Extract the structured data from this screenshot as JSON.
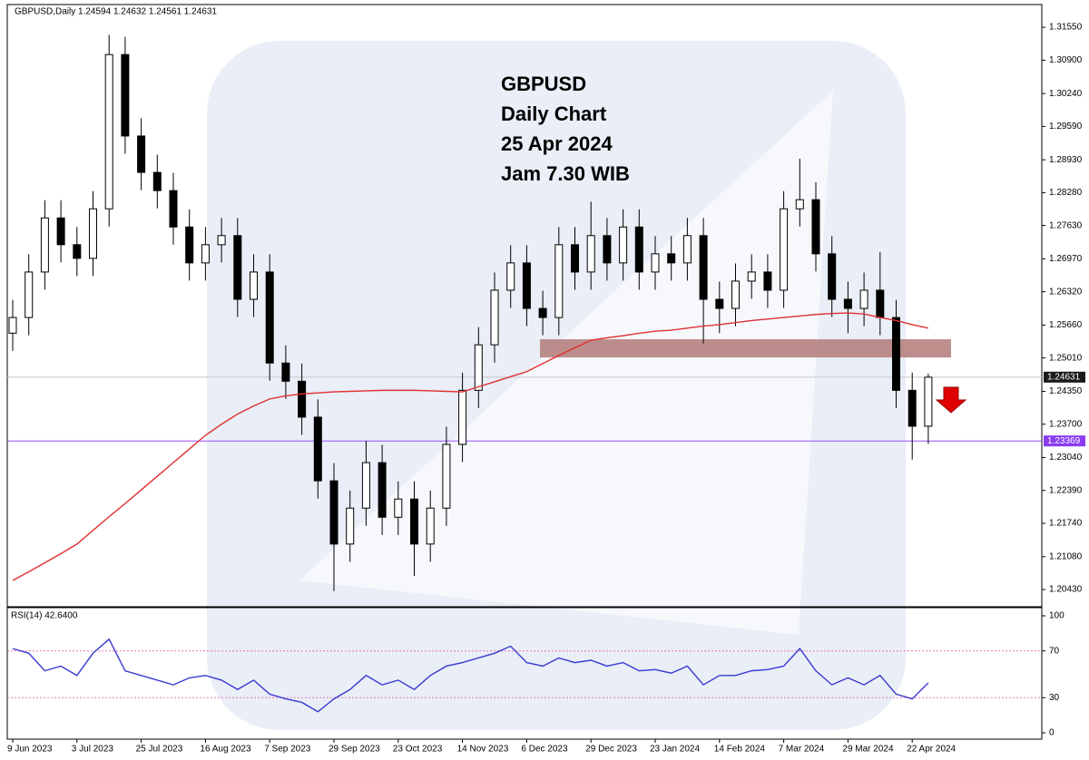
{
  "chart_data": [
    {
      "type": "candlestick",
      "header": "GBPUSD,Daily  1.24594 1.24632 1.24561 1.24631",
      "annotation": [
        "GBPUSD",
        "Daily Chart",
        "25 Apr 2024",
        "Jam 7.30 WIB"
      ],
      "categories": [
        "9 Jun 2023",
        null,
        null,
        null,
        "3 Jul 2023",
        null,
        null,
        null,
        "25 Jul 2023",
        null,
        null,
        null,
        "16 Aug 2023",
        null,
        null,
        null,
        "7 Sep 2023",
        null,
        null,
        null,
        "29 Sep 2023",
        null,
        null,
        null,
        "23 Oct 2023",
        null,
        null,
        null,
        "14 Nov 2023",
        null,
        null,
        null,
        "6 Dec 2023",
        null,
        null,
        null,
        "29 Dec 2023",
        null,
        null,
        null,
        "23 Jan 2024",
        null,
        null,
        null,
        "14 Feb 2024",
        null,
        null,
        null,
        "7 Mar 2024",
        null,
        null,
        null,
        "29 Mar 2024",
        null,
        null,
        null,
        "22 Apr 2024",
        null
      ],
      "open": [
        1.255,
        1.2581,
        1.2671,
        1.2778,
        1.2725,
        1.2698,
        1.2796,
        1.3101,
        1.294,
        1.2868,
        1.2832,
        1.276,
        1.2689,
        1.2725,
        1.2743,
        1.2617,
        1.2671,
        1.2491,
        1.2455,
        1.2384,
        1.2258,
        1.2133,
        1.2204,
        1.2294,
        1.2186,
        1.2222,
        1.2133,
        1.2204,
        1.233,
        1.2437,
        1.2527,
        1.2635,
        1.2689,
        1.2599,
        1.2581,
        1.2725,
        1.2671,
        1.2743,
        1.2689,
        1.276,
        1.2671,
        1.2707,
        1.2689,
        1.2743,
        1.2617,
        1.2599,
        1.2653,
        1.2671,
        1.2635,
        1.2796,
        1.2814,
        1.2707,
        1.2617,
        1.2599,
        1.2635,
        1.2581,
        1.2437,
        1.2366
      ],
      "high": [
        1.2616,
        1.2706,
        1.2813,
        1.2813,
        1.276,
        1.2831,
        1.314,
        1.3136,
        1.2975,
        1.2903,
        1.2867,
        1.2795,
        1.276,
        1.2778,
        1.2778,
        1.2706,
        1.2706,
        1.2526,
        1.249,
        1.2419,
        1.2293,
        1.2239,
        1.2337,
        1.2329,
        1.2257,
        1.2257,
        1.2239,
        1.2365,
        1.2472,
        1.2562,
        1.267,
        1.2724,
        1.2724,
        1.2634,
        1.276,
        1.276,
        1.281,
        1.2778,
        1.2795,
        1.2795,
        1.2742,
        1.2742,
        1.2778,
        1.2778,
        1.2652,
        1.2688,
        1.2706,
        1.2706,
        1.2831,
        1.2895,
        1.2849,
        1.2742,
        1.2652,
        1.267,
        1.271,
        1.2616,
        1.2472,
        1.247
      ],
      "low": [
        1.2515,
        1.2546,
        1.2636,
        1.269,
        1.2663,
        1.2663,
        1.2761,
        1.2905,
        1.2833,
        1.2797,
        1.2725,
        1.2654,
        1.2654,
        1.269,
        1.2582,
        1.2582,
        1.2456,
        1.242,
        1.2349,
        1.2223,
        1.204,
        1.2098,
        1.2169,
        1.2151,
        1.2151,
        1.207,
        1.2098,
        1.2169,
        1.2295,
        1.2402,
        1.2492,
        1.26,
        1.2564,
        1.2546,
        1.2546,
        1.2636,
        1.2636,
        1.2654,
        1.2654,
        1.2636,
        1.2636,
        1.2654,
        1.2654,
        1.253,
        1.255,
        1.2564,
        1.2618,
        1.26,
        1.26,
        1.2761,
        1.2672,
        1.2582,
        1.255,
        1.2564,
        1.2546,
        1.2402,
        1.23,
        1.2331
      ],
      "close": [
        1.2581,
        1.2671,
        1.2778,
        1.2725,
        1.2698,
        1.2796,
        1.3101,
        1.294,
        1.2868,
        1.2832,
        1.276,
        1.2689,
        1.2725,
        1.2743,
        1.2617,
        1.2671,
        1.2491,
        1.2455,
        1.2384,
        1.2258,
        1.2133,
        1.2204,
        1.2294,
        1.2186,
        1.2222,
        1.2133,
        1.2204,
        1.233,
        1.2437,
        1.2527,
        1.2635,
        1.2689,
        1.2599,
        1.2581,
        1.2725,
        1.2671,
        1.2743,
        1.2689,
        1.276,
        1.2671,
        1.2707,
        1.2689,
        1.2743,
        1.2617,
        1.2599,
        1.2653,
        1.2671,
        1.2635,
        1.2796,
        1.2814,
        1.2707,
        1.2617,
        1.2599,
        1.2635,
        1.2581,
        1.2437,
        1.2366,
        1.2463
      ],
      "up_color": "#ffffff",
      "down_color": "#000000",
      "ma": {
        "color": "#e03030",
        "values": [
          1.2061,
          1.2078,
          1.2096,
          1.2114,
          1.2133,
          1.216,
          1.2187,
          1.2213,
          1.224,
          1.2267,
          1.2294,
          1.2321,
          1.2348,
          1.237,
          1.239,
          1.2406,
          1.242,
          1.2426,
          1.243,
          1.2432,
          1.2434,
          1.2435,
          1.2436,
          1.2437,
          1.2437,
          1.2437,
          1.2436,
          1.2435,
          1.2434,
          1.2444,
          1.2454,
          1.2464,
          1.2474,
          1.249,
          1.2506,
          1.2521,
          1.2536,
          1.2541,
          1.2545,
          1.255,
          1.2554,
          1.2556,
          1.256,
          1.2564,
          1.2567,
          1.2571,
          1.2575,
          1.2578,
          1.2581,
          1.2584,
          1.2587,
          1.2589,
          1.259,
          1.2588,
          1.2581,
          1.2575,
          1.2567,
          1.256
        ]
      },
      "zone": {
        "from": 1.2502,
        "to": 1.2538,
        "color": "#b27a78"
      },
      "hlines": [
        {
          "value": 1.24631,
          "color": "#c8c8c8",
          "box": "#1a1a1a"
        },
        {
          "value": 1.23369,
          "color": "#9b4dff",
          "box": "#8a3cf0"
        }
      ],
      "ylim": [
        1.2009,
        1.32
      ],
      "yticks": [
        {
          "value": 1.3155,
          "label": "1.31550"
        },
        {
          "value": 1.309,
          "label": "1.30900"
        },
        {
          "value": 1.3024,
          "label": "1.30240"
        },
        {
          "value": 1.2959,
          "label": "1.29590"
        },
        {
          "value": 1.2893,
          "label": "1.28930"
        },
        {
          "value": 1.2828,
          "label": "1.28280"
        },
        {
          "value": 1.2763,
          "label": "1.27630"
        },
        {
          "value": 1.2697,
          "label": "1.26970"
        },
        {
          "value": 1.2632,
          "label": "1.26320"
        },
        {
          "value": 1.2566,
          "label": "1.25660"
        },
        {
          "value": 1.2501,
          "label": "1.25010"
        },
        {
          "value": 1.2435,
          "label": "1.24350"
        },
        {
          "value": 1.237,
          "label": "1.23700"
        },
        {
          "value": 1.2304,
          "label": "1.23040"
        },
        {
          "value": 1.2239,
          "label": "1.22390"
        },
        {
          "value": 1.2174,
          "label": "1.21740"
        },
        {
          "value": 1.2108,
          "label": "1.21080"
        },
        {
          "value": 1.2043,
          "label": "1.20430"
        }
      ]
    },
    {
      "type": "line",
      "title": "RSI(14) 42.6400",
      "color": "#3a3ad0",
      "values": [
        72,
        68,
        53,
        57,
        49,
        68,
        80,
        53,
        49,
        45,
        41,
        47,
        49,
        45,
        37,
        45,
        33,
        29,
        26,
        18,
        29,
        37,
        49,
        41,
        45,
        37,
        49,
        57,
        60,
        64,
        68,
        74,
        60,
        57,
        64,
        60,
        62,
        57,
        60,
        53,
        54,
        51,
        57,
        41,
        49,
        49,
        53,
        54,
        57,
        72,
        53,
        41,
        47,
        41,
        49,
        33,
        29,
        42.64
      ],
      "levels": [
        70,
        30
      ],
      "level_color": "#e07ab0",
      "ylim": [
        0,
        100
      ],
      "yticks": [
        100,
        70,
        30,
        0
      ]
    }
  ]
}
